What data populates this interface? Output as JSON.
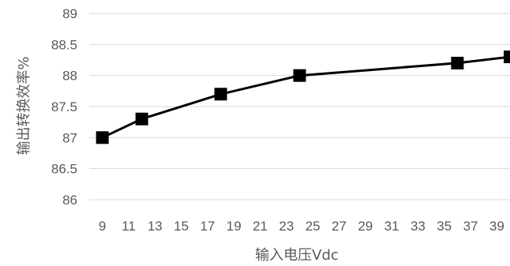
{
  "chart_data": {
    "type": "line",
    "title": "",
    "xlabel": "输入电压Vdc",
    "ylabel": "输出转换效率%",
    "x_ticks": [
      9,
      11,
      13,
      15,
      17,
      19,
      21,
      23,
      25,
      27,
      29,
      31,
      33,
      35,
      37,
      39
    ],
    "y_ticks": [
      "86",
      "86.5",
      "87",
      "87.5",
      "88",
      "88.5",
      "89"
    ],
    "xlim": [
      8,
      40
    ],
    "ylim": [
      86,
      89
    ],
    "grid": "horizontal",
    "series": [
      {
        "x": [
          9,
          12,
          18,
          24,
          36,
          40
        ],
        "y": [
          87.0,
          87.3,
          87.7,
          88.0,
          88.2,
          88.3
        ]
      }
    ],
    "line_color": "#000000",
    "marker": "square"
  }
}
